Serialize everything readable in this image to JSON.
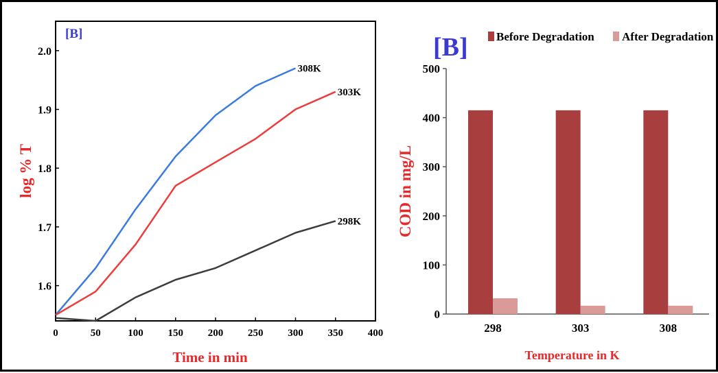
{
  "panel_label": "[B]",
  "chart_data": [
    {
      "type": "line",
      "panel_label": "[B]",
      "xlabel": "Time in min",
      "ylabel": "log % T",
      "xlim": [
        0,
        400
      ],
      "ylim": [
        1.54,
        2.05
      ],
      "xticks": [
        "0",
        "50",
        "100",
        "150",
        "200",
        "250",
        "300",
        "350",
        "400"
      ],
      "yticks": [
        "1.6",
        "1.7",
        "1.8",
        "1.9",
        "2.0"
      ],
      "xtick_values": [
        0,
        50,
        100,
        150,
        200,
        250,
        300,
        350,
        400
      ],
      "ytick_values": [
        1.6,
        1.7,
        1.8,
        1.9,
        2.0
      ],
      "grid": false,
      "series": [
        {
          "name": "308K",
          "color": "#3a7be0",
          "x": [
            0,
            50,
            100,
            150,
            200,
            250,
            300
          ],
          "y": [
            1.55,
            1.63,
            1.73,
            1.82,
            1.89,
            1.94,
            1.97
          ]
        },
        {
          "name": "303K",
          "color": "#ee3b3b",
          "x": [
            0,
            50,
            100,
            150,
            200,
            250,
            300,
            350
          ],
          "y": [
            1.55,
            1.59,
            1.67,
            1.77,
            1.81,
            1.85,
            1.9,
            1.93
          ]
        },
        {
          "name": "298K",
          "color": "#3d3d3d",
          "x": [
            0,
            50,
            100,
            150,
            200,
            250,
            300,
            350
          ],
          "y": [
            1.545,
            1.54,
            1.58,
            1.61,
            1.63,
            1.66,
            1.69,
            1.71
          ]
        }
      ]
    },
    {
      "type": "bar",
      "panel_label": "[B]",
      "xlabel": "Temperature in K",
      "ylabel": "COD in mg/L",
      "categories": [
        "298",
        "303",
        "308"
      ],
      "ylim": [
        0,
        500
      ],
      "yticks": [
        "0",
        "100",
        "200",
        "300",
        "400",
        "500"
      ],
      "ytick_values": [
        0,
        100,
        200,
        300,
        400,
        500
      ],
      "legend_position": "top",
      "grid": false,
      "series": [
        {
          "name": "Before Degradation",
          "color": "#a83e3e",
          "values": [
            415,
            415,
            415
          ]
        },
        {
          "name": "After Degradation",
          "color": "#d99a98",
          "values": [
            32,
            17,
            17
          ]
        }
      ]
    }
  ]
}
